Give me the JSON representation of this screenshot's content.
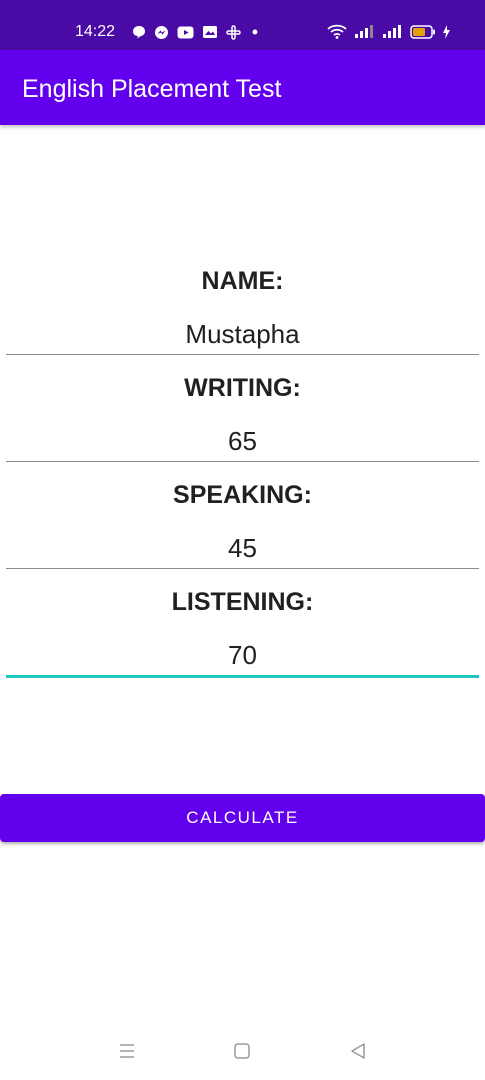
{
  "status_bar": {
    "time": "14:22",
    "left_icons": [
      "chat-bubble-icon",
      "messenger-icon",
      "youtube-icon",
      "gallery-icon",
      "slack-icon",
      "dot-icon"
    ],
    "right_icons": [
      "wifi-icon",
      "signal-icon",
      "signal-icon",
      "battery-icon",
      "charging-icon"
    ]
  },
  "app_bar": {
    "title": "English Placement Test"
  },
  "form": {
    "name_label": "NAME:",
    "name_value": "Mustapha",
    "writing_label": "WRITING:",
    "writing_value": "65",
    "speaking_label": "SPEAKING:",
    "speaking_value": "45",
    "listening_label": "LISTENING:",
    "listening_value": "70"
  },
  "button": {
    "calculate_label": "CALCULATE"
  },
  "nav_bar": {
    "icons": [
      "menu-icon",
      "home-icon",
      "back-icon"
    ]
  },
  "colors": {
    "status_bar": "#4a0aa5",
    "primary": "#6200ee",
    "accent_focus": "#1fc8c0",
    "text": "#202020"
  }
}
